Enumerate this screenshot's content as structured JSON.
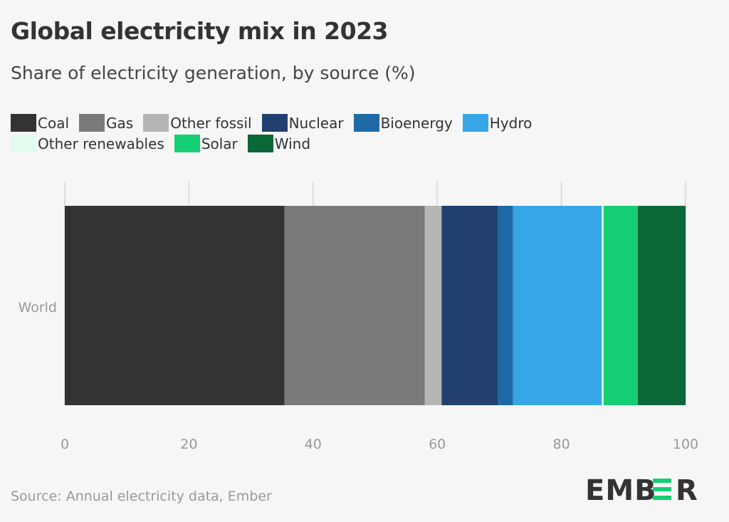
{
  "chart_data": {
    "type": "bar",
    "orientation": "horizontal",
    "stacked": true,
    "title": "Global electricity mix in 2023",
    "subtitle": "Share of electricity generation, by source (%)",
    "categories": [
      "World"
    ],
    "series": [
      {
        "name": "Coal",
        "color": "#333333",
        "values": [
          35.4
        ]
      },
      {
        "name": "Gas",
        "color": "#7a7a7a",
        "values": [
          22.6
        ]
      },
      {
        "name": "Other fossil",
        "color": "#b5b5b5",
        "values": [
          2.7
        ]
      },
      {
        "name": "Nuclear",
        "color": "#21406f",
        "values": [
          9.1
        ]
      },
      {
        "name": "Bioenergy",
        "color": "#1f6aa6",
        "values": [
          2.4
        ]
      },
      {
        "name": "Hydro",
        "color": "#37a6e6",
        "values": [
          14.3
        ]
      },
      {
        "name": "Other renewables",
        "color": "#e3faf0",
        "values": [
          0.3
        ]
      },
      {
        "name": "Solar",
        "color": "#15cf74",
        "values": [
          5.5
        ]
      },
      {
        "name": "Wind",
        "color": "#0b6638",
        "values": [
          7.7
        ]
      }
    ],
    "xlim": [
      0,
      100
    ],
    "xticks": [
      "0",
      "20",
      "40",
      "60",
      "80",
      "100"
    ],
    "grid": true,
    "legend_position": "top"
  },
  "source": "Source: Annual electricity data, Ember",
  "logo": {
    "text": "EMBER",
    "accent": "#15cf74"
  }
}
